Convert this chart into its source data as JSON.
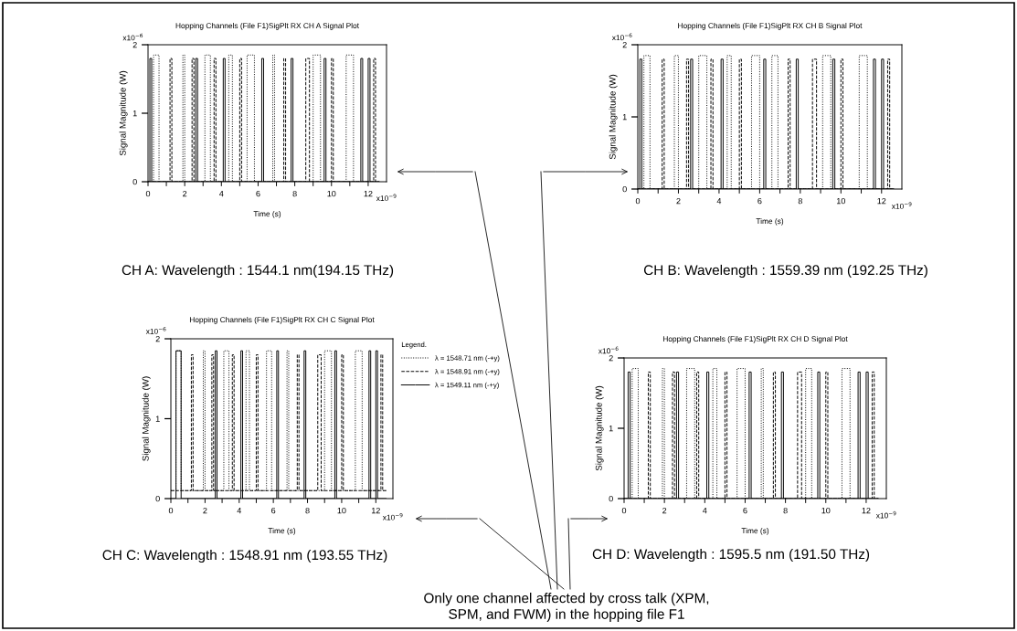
{
  "chart_data": [
    {
      "type": "line",
      "title": "Hopping Channels (File F1)SigPlt RX CH A Signal Plot",
      "xlabel": "Time (s)",
      "ylabel": "Signal Magnitude (W)",
      "xlim": [
        0,
        13
      ],
      "ylim": [
        0,
        2
      ],
      "xticks": [
        0,
        {
          "value": 1,
          "label": null
        },
        2,
        {
          "value": 3,
          "label": null
        },
        4,
        {
          "value": 5,
          "label": null
        },
        6,
        {
          "value": 7,
          "label": null
        },
        8,
        {
          "value": 9,
          "label": null
        },
        10,
        {
          "value": 11,
          "label": null
        },
        12
      ],
      "yticks": [
        0,
        1,
        2
      ],
      "annotations": [
        "x10$^{−6}$",
        "x10$^{−9}$",
        "CH A: Wavelength : 1544.1 nm(194.15 THz)"
      ],
      "series": [
        {
          "color": "#000000",
          "line_style": "dotted",
          "x": [
            0,
            0.3,
            0.3,
            0.6,
            0.6,
            1.9,
            1.9,
            2.0,
            2.0,
            3.1,
            3.1,
            3.4,
            3.4,
            4.4,
            4.4,
            4.6,
            4.6,
            5.4,
            5.4,
            5.8,
            5.8,
            6.8,
            6.8,
            6.9,
            6.9,
            9.0,
            9.0,
            9.4,
            9.4,
            10.8,
            10.8,
            11.2,
            11.2,
            12.6
          ],
          "values": [
            0,
            0,
            1.85,
            1.85,
            0,
            0,
            1.85,
            1.85,
            0,
            0,
            1.85,
            1.85,
            0,
            0,
            1.85,
            1.85,
            0,
            0,
            1.85,
            1.85,
            0,
            0,
            1.85,
            1.85,
            0,
            0,
            1.85,
            1.85,
            0,
            0,
            1.85,
            1.85,
            0,
            0
          ]
        },
        {
          "color": "#000000",
          "line_style": "dashed",
          "x": [
            0,
            1.2,
            1.2,
            1.3,
            1.3,
            2.4,
            2.4,
            2.5,
            2.5,
            3.6,
            3.6,
            3.7,
            3.7,
            5.0,
            5.0,
            5.1,
            5.1,
            7.4,
            7.4,
            7.5,
            7.5,
            8.6,
            8.6,
            8.8,
            8.8,
            10.0,
            10.0,
            10.1,
            10.1,
            12.3,
            12.3,
            12.4,
            12.4,
            12.6
          ],
          "values": [
            0,
            0,
            1.8,
            1.8,
            0,
            0,
            1.8,
            1.8,
            0,
            0,
            1.8,
            1.8,
            0,
            0,
            1.8,
            1.8,
            0,
            0,
            1.8,
            1.8,
            0,
            0,
            1.8,
            1.8,
            0,
            0,
            1.8,
            1.8,
            0,
            0,
            1.8,
            1.8,
            0,
            0
          ]
        },
        {
          "color": "#000000",
          "line_style": "solid",
          "x": [
            0,
            0.1,
            0.1,
            0.2,
            0.2,
            2.6,
            2.6,
            2.7,
            2.7,
            4.1,
            4.1,
            4.2,
            4.2,
            6.2,
            6.2,
            6.3,
            6.3,
            7.8,
            7.8,
            7.9,
            7.9,
            9.6,
            9.6,
            9.7,
            9.7,
            11.6,
            11.6,
            11.7,
            11.7,
            12.0,
            12.0,
            12.1,
            12.1,
            12.6
          ],
          "values": [
            0,
            0,
            1.8,
            1.8,
            0,
            0,
            1.8,
            1.8,
            0,
            0,
            1.8,
            1.8,
            0,
            0,
            1.8,
            1.8,
            0,
            0,
            1.8,
            1.8,
            0,
            0,
            1.8,
            1.8,
            0,
            0,
            1.8,
            1.8,
            0,
            0,
            1.8,
            1.8,
            0,
            0
          ]
        }
      ]
    },
    {
      "type": "line",
      "title": "Hopping Channels (File F1)SigPlt RX CH B Signal Plot",
      "xlabel": "Time (s)",
      "ylabel": "Signal Magnitude (W)",
      "xlim": [
        0,
        13
      ],
      "ylim": [
        0,
        2
      ],
      "xticks": [
        0,
        {
          "value": 1,
          "label": null
        },
        2,
        {
          "value": 3,
          "label": null
        },
        4,
        {
          "value": 5,
          "label": null
        },
        6,
        {
          "value": 7,
          "label": null
        },
        8,
        {
          "value": 9,
          "label": null
        },
        10,
        {
          "value": 11,
          "label": null
        },
        12
      ],
      "yticks": [
        0,
        1,
        2
      ],
      "annotations": [
        "x10$^{−6}$",
        "x10$^{−9}$",
        "CH B: Wavelength : 1559.39 nm (192.25 THz)"
      ],
      "series": [
        {
          "color": "#000000",
          "line_style": "dotted",
          "x": [
            0,
            0.3,
            0.3,
            0.6,
            0.6,
            1.8,
            1.8,
            2.0,
            2.0,
            3.0,
            3.0,
            3.4,
            3.4,
            4.4,
            4.4,
            4.6,
            4.6,
            5.6,
            5.6,
            6.0,
            6.0,
            6.6,
            6.6,
            6.9,
            6.9,
            9.1,
            9.1,
            9.5,
            9.5,
            10.9,
            10.9,
            11.3,
            11.3,
            12.6
          ],
          "values": [
            0,
            0,
            1.85,
            1.85,
            0,
            0,
            1.85,
            1.85,
            0,
            0,
            1.85,
            1.85,
            0,
            0,
            1.85,
            1.85,
            0,
            0,
            1.85,
            1.85,
            0,
            0,
            1.85,
            1.85,
            0,
            0,
            1.85,
            1.85,
            0,
            0,
            1.85,
            1.85,
            0,
            0
          ]
        },
        {
          "color": "#000000",
          "line_style": "dashed",
          "x": [
            0,
            1.2,
            1.2,
            1.3,
            1.3,
            2.4,
            2.4,
            2.5,
            2.5,
            3.6,
            3.6,
            3.7,
            3.7,
            5.0,
            5.0,
            5.1,
            5.1,
            7.4,
            7.4,
            7.5,
            7.5,
            8.6,
            8.6,
            8.8,
            8.8,
            10.0,
            10.0,
            10.1,
            10.1,
            12.3,
            12.3,
            12.4,
            12.4,
            12.6
          ],
          "values": [
            0,
            0,
            1.8,
            1.8,
            0,
            0,
            1.8,
            1.8,
            0,
            0,
            1.8,
            1.8,
            0,
            0,
            1.8,
            1.8,
            0,
            0,
            1.8,
            1.8,
            0,
            0,
            1.8,
            1.8,
            0,
            0,
            1.8,
            1.8,
            0,
            0,
            1.8,
            1.8,
            0,
            0
          ]
        },
        {
          "color": "#000000",
          "line_style": "solid",
          "x": [
            0,
            0.1,
            0.1,
            0.2,
            0.2,
            2.6,
            2.6,
            2.7,
            2.7,
            4.1,
            4.1,
            4.2,
            4.2,
            6.2,
            6.2,
            6.3,
            6.3,
            7.8,
            7.8,
            7.9,
            7.9,
            9.6,
            9.6,
            9.7,
            9.7,
            11.6,
            11.6,
            11.7,
            11.7,
            12.0,
            12.0,
            12.1,
            12.1,
            12.6
          ],
          "values": [
            0,
            0,
            1.8,
            1.8,
            0,
            0,
            1.8,
            1.8,
            0,
            0,
            1.8,
            1.8,
            0,
            0,
            1.8,
            1.8,
            0,
            0,
            1.8,
            1.8,
            0,
            0,
            1.8,
            1.8,
            0,
            0,
            1.8,
            1.8,
            0,
            0,
            1.8,
            1.8,
            0,
            0
          ]
        }
      ]
    },
    {
      "type": "line",
      "title": "Hopping Channels (File F1)SigPlt RX CH C Signal Plot",
      "xlabel": "Time (s)",
      "ylabel": "Signal Magnitude (W)",
      "xlim": [
        0,
        13
      ],
      "ylim": [
        0,
        2
      ],
      "legend": "right",
      "legend_title": "Legend.",
      "xticks": [
        0,
        {
          "value": 1,
          "label": null
        },
        2,
        {
          "value": 3,
          "label": null
        },
        4,
        {
          "value": 5,
          "label": null
        },
        6,
        {
          "value": 7,
          "label": null
        },
        8,
        {
          "value": 9,
          "label": null
        },
        10,
        {
          "value": 11,
          "label": null
        },
        12
      ],
      "yticks": [
        0,
        1,
        2
      ],
      "annotations": [
        "x10$^{−6}$",
        "x10$^{−9}$",
        "CH C: Wavelength : 1548.91 nm (193.55 THz)"
      ],
      "series": [
        {
          "name": "λ = 1548.71 nm (-+y)",
          "color": "#000000",
          "line_style": "dotted",
          "x": [
            0,
            0.3,
            0.3,
            0.6,
            0.6,
            1.9,
            1.9,
            2.0,
            2.0,
            3.1,
            3.1,
            3.4,
            3.4,
            4.4,
            4.4,
            4.6,
            4.6,
            5.6,
            5.6,
            5.9,
            5.9,
            6.8,
            6.8,
            6.9,
            6.9,
            9.0,
            9.0,
            9.4,
            9.4,
            10.8,
            10.8,
            11.2,
            11.2,
            12.6
          ],
          "values": [
            0.1,
            0.1,
            1.85,
            1.85,
            0.1,
            0.1,
            1.85,
            1.85,
            0.1,
            0.1,
            1.85,
            1.85,
            0.1,
            0.1,
            1.85,
            1.85,
            0.1,
            0.1,
            1.85,
            1.85,
            0.1,
            0.1,
            1.85,
            1.85,
            0.1,
            0.1,
            1.85,
            1.85,
            0.1,
            0.1,
            1.85,
            1.85,
            0.1,
            0.1
          ]
        },
        {
          "name": "λ = 1548.91 nm (-+y)",
          "color": "#000000",
          "line_style": "dashed",
          "x": [
            0,
            1.2,
            1.2,
            1.3,
            1.3,
            2.4,
            2.4,
            2.5,
            2.5,
            3.6,
            3.6,
            3.7,
            3.7,
            5.0,
            5.0,
            5.1,
            5.1,
            7.4,
            7.4,
            7.5,
            7.5,
            8.6,
            8.6,
            8.8,
            8.8,
            10.0,
            10.0,
            10.1,
            10.1,
            12.3,
            12.3,
            12.4,
            12.4,
            12.6
          ],
          "values": [
            0.1,
            0.1,
            1.8,
            1.8,
            0.1,
            0.1,
            1.8,
            1.8,
            0.1,
            0.1,
            1.8,
            1.8,
            0.1,
            0.1,
            1.8,
            1.8,
            0.1,
            0.1,
            1.8,
            1.8,
            0.1,
            0.1,
            1.8,
            1.8,
            0.1,
            0.1,
            1.8,
            1.8,
            0.1,
            0.1,
            1.8,
            1.8,
            0.1,
            0.1
          ]
        },
        {
          "name": "λ = 1549.11 nm (-+y)",
          "color": "#000000",
          "line_style": "solid",
          "x": [
            0,
            0.3,
            0.3,
            0.6,
            0.6,
            2.6,
            2.6,
            2.7,
            2.7,
            4.1,
            4.1,
            4.2,
            4.2,
            6.2,
            6.2,
            6.3,
            6.3,
            7.8,
            7.8,
            7.9,
            7.9,
            9.6,
            9.6,
            9.7,
            9.7,
            11.6,
            11.6,
            11.7,
            11.7,
            12.0,
            12.0,
            12.1,
            12.1,
            12.6
          ],
          "values": [
            0,
            0,
            1.85,
            1.85,
            0,
            0,
            1.85,
            1.85,
            0,
            0,
            1.85,
            1.85,
            0,
            0,
            1.85,
            1.85,
            0,
            0,
            1.85,
            1.85,
            0,
            0,
            1.85,
            1.85,
            0,
            0,
            1.85,
            1.85,
            0,
            0,
            1.85,
            1.85,
            0,
            0
          ]
        }
      ]
    },
    {
      "type": "line",
      "title": "Hopping Channels (File F1)SigPlt RX CH D Signal Plot",
      "xlabel": "Time (s)",
      "ylabel": "Signal Magnitude (W)",
      "xlim": [
        0,
        13
      ],
      "ylim": [
        0,
        2
      ],
      "xticks": [
        0,
        {
          "value": 1,
          "label": null
        },
        2,
        {
          "value": 3,
          "label": null
        },
        4,
        {
          "value": 5,
          "label": null
        },
        6,
        {
          "value": 7,
          "label": null
        },
        8,
        {
          "value": 9,
          "label": null
        },
        10,
        {
          "value": 11,
          "label": null
        },
        12
      ],
      "yticks": [
        0,
        1,
        2
      ],
      "annotations": [
        "x10$^{−6}$",
        "x10$^{−9}$",
        "CH D: Wavelength : 1595.5 nm (191.50 THz)",
        "Only one channel affected by cross talk (XPM,\nSPM, and FWM) in the hopping file F1"
      ],
      "series": [
        {
          "color": "#000000",
          "line_style": "dotted",
          "x": [
            0,
            0.4,
            0.4,
            0.7,
            0.7,
            1.9,
            1.9,
            2.0,
            2.0,
            3.1,
            3.1,
            3.5,
            3.5,
            4.4,
            4.4,
            4.6,
            4.6,
            5.6,
            5.6,
            6.0,
            6.0,
            6.8,
            6.8,
            6.9,
            6.9,
            9.0,
            9.0,
            9.3,
            9.3,
            10.8,
            10.8,
            11.2,
            11.2,
            12.6
          ],
          "values": [
            0,
            0,
            1.85,
            1.85,
            0,
            0,
            1.85,
            1.85,
            0,
            0,
            1.85,
            1.85,
            0,
            0,
            1.85,
            1.85,
            0,
            0,
            1.85,
            1.85,
            0,
            0,
            1.85,
            1.85,
            0,
            0,
            1.85,
            1.85,
            0,
            0,
            1.85,
            1.85,
            0,
            0
          ]
        },
        {
          "color": "#000000",
          "line_style": "dashed",
          "x": [
            0,
            1.2,
            1.2,
            1.3,
            1.3,
            2.4,
            2.4,
            2.5,
            2.5,
            3.6,
            3.6,
            3.7,
            3.7,
            5.0,
            5.0,
            5.1,
            5.1,
            7.4,
            7.4,
            7.5,
            7.5,
            8.6,
            8.6,
            8.8,
            8.8,
            10.0,
            10.0,
            10.1,
            10.1,
            12.3,
            12.3,
            12.4,
            12.4,
            12.6
          ],
          "values": [
            0,
            0,
            1.8,
            1.8,
            0,
            0,
            1.8,
            1.8,
            0,
            0,
            1.8,
            1.8,
            0,
            0,
            1.8,
            1.8,
            0,
            0,
            1.8,
            1.8,
            0,
            0,
            1.8,
            1.8,
            0,
            0,
            1.8,
            1.8,
            0,
            0,
            1.8,
            1.8,
            0,
            0
          ]
        },
        {
          "color": "#000000",
          "line_style": "solid",
          "x": [
            0,
            0.2,
            0.2,
            0.3,
            0.3,
            2.6,
            2.6,
            2.7,
            2.7,
            4.1,
            4.1,
            4.2,
            4.2,
            6.2,
            6.2,
            6.3,
            6.3,
            7.8,
            7.8,
            7.9,
            7.9,
            9.6,
            9.6,
            9.7,
            9.7,
            11.6,
            11.6,
            11.7,
            11.7,
            12.0,
            12.0,
            12.1,
            12.1,
            12.6
          ],
          "values": [
            0,
            0,
            1.8,
            1.8,
            0,
            0,
            1.8,
            1.8,
            0,
            0,
            1.8,
            1.8,
            0,
            0,
            1.8,
            1.8,
            0,
            0,
            1.8,
            1.8,
            0,
            0,
            1.8,
            1.8,
            0,
            0,
            1.8,
            1.8,
            0,
            0,
            1.8,
            1.8,
            0,
            0
          ]
        }
      ]
    }
  ]
}
